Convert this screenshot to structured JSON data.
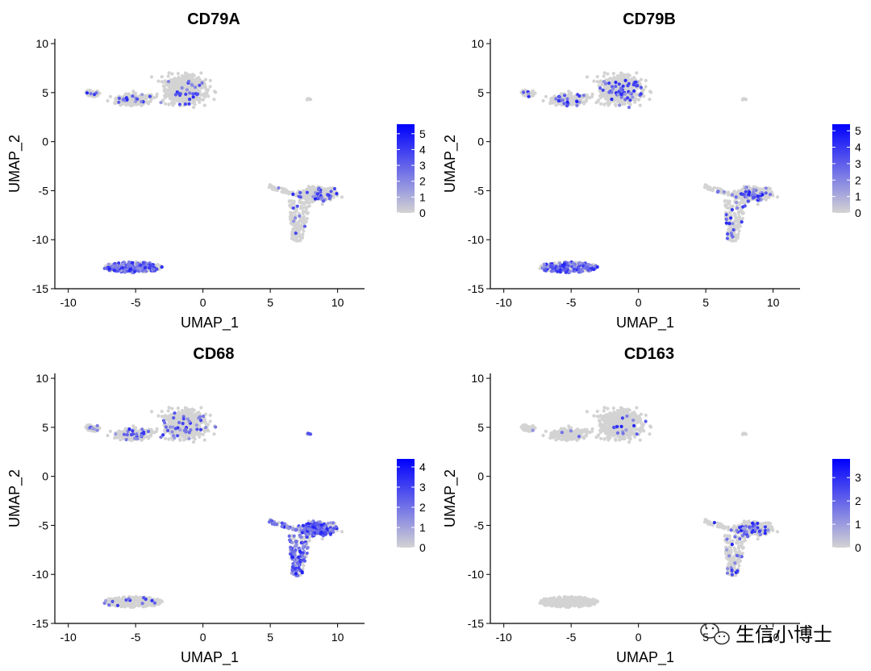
{
  "chart_data": [
    {
      "type": "scatter",
      "title": "CD79A",
      "xlabel": "UMAP_1",
      "ylabel": "UMAP_2",
      "xlim": [
        -11,
        12
      ],
      "ylim": [
        -15,
        10.5
      ],
      "xticks": [
        "-10",
        "-5",
        "0",
        "5",
        "10"
      ],
      "yticks": [
        "10",
        "5",
        "0",
        "-5",
        "-10",
        "-15"
      ],
      "legend_ticks": [
        "5",
        "4",
        "3",
        "2",
        "1",
        "0"
      ],
      "legend_max": 5.6,
      "colors": {
        "low": "#d3d3d3",
        "high": "#0000ff"
      },
      "expression": {
        "bcell": 0.55,
        "main": 0.05,
        "right": 0.06,
        "small": 0.0
      }
    },
    {
      "type": "scatter",
      "title": "CD79B",
      "xlabel": "UMAP_1",
      "ylabel": "UMAP_2",
      "xlim": [
        -11,
        12
      ],
      "ylim": [
        -15,
        10.5
      ],
      "xticks": [
        "-10",
        "-5",
        "0",
        "5",
        "10"
      ],
      "yticks": [
        "10",
        "5",
        "0",
        "-5",
        "-10",
        "-15"
      ],
      "legend_ticks": [
        "5",
        "4",
        "3",
        "2",
        "1",
        "0"
      ],
      "legend_max": 5.4,
      "colors": {
        "low": "#d3d3d3",
        "high": "#0000ff"
      },
      "expression": {
        "bcell": 0.55,
        "main": 0.07,
        "right": 0.14,
        "small": 0.0
      }
    },
    {
      "type": "scatter",
      "title": "CD68",
      "xlabel": "UMAP_1",
      "ylabel": "UMAP_2",
      "xlim": [
        -11,
        12
      ],
      "ylim": [
        -15,
        10.5
      ],
      "xticks": [
        "-10",
        "-5",
        "0",
        "5",
        "10"
      ],
      "yticks": [
        "10",
        "5",
        "0",
        "-5",
        "-10",
        "-15"
      ],
      "legend_ticks": [
        "4",
        "3",
        "2",
        "1",
        "0"
      ],
      "legend_max": 4.4,
      "colors": {
        "low": "#d3d3d3",
        "high": "#0000ff"
      },
      "expression": {
        "bcell": 0.08,
        "main": 0.06,
        "right": 0.6,
        "small": 0.5
      }
    },
    {
      "type": "scatter",
      "title": "CD163",
      "xlabel": "UMAP_1",
      "ylabel": "UMAP_2",
      "xlim": [
        -11,
        12
      ],
      "ylim": [
        -15,
        10.5
      ],
      "xticks": [
        "-10",
        "-5",
        "0",
        "5",
        "10"
      ],
      "yticks": [
        "10",
        "5",
        "0",
        "-5",
        "-10",
        "-15"
      ],
      "legend_ticks": [
        "3",
        "2",
        "1",
        "0"
      ],
      "legend_max": 3.8,
      "colors": {
        "low": "#d3d3d3",
        "high": "#0000ff"
      },
      "expression": {
        "bcell": 0.0,
        "main": 0.02,
        "right": 0.12,
        "small": 0.0
      }
    }
  ],
  "watermark": {
    "icon": "wechat-icon",
    "text": "生信小博士"
  }
}
